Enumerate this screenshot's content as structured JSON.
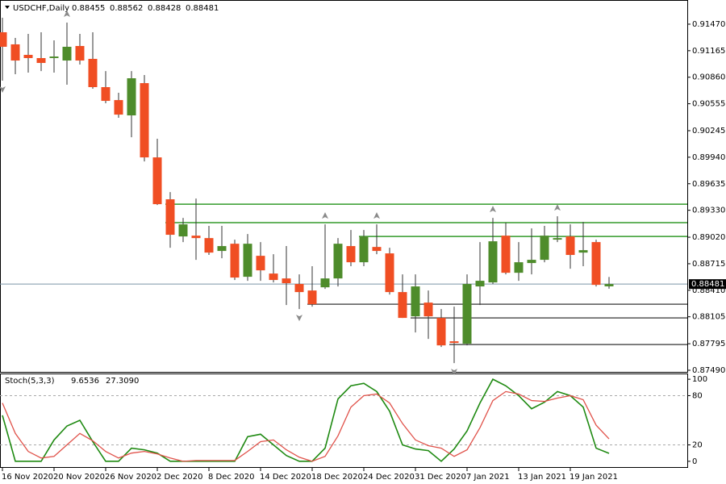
{
  "chart_data": {
    "type": "candlestick",
    "title": "USDCHF,Daily",
    "categories": [
      "16 Nov 2020",
      null,
      null,
      null,
      "20 Nov 2020",
      null,
      null,
      null,
      "26 Nov 2020",
      null,
      null,
      null,
      "2 Dec 2020",
      null,
      null,
      null,
      "8 Dec 2020",
      null,
      null,
      null,
      "14 Dec 2020",
      null,
      null,
      null,
      "18 Dec 2020",
      null,
      null,
      null,
      "24 Dec 2020",
      null,
      null,
      null,
      "31 Dec 2020",
      null,
      null,
      null,
      "7 Jan 2021",
      null,
      null,
      null,
      "13 Jan 2021",
      null,
      null,
      null,
      "19 Jan 2021",
      null,
      null,
      null
    ],
    "open": [
      0.91377,
      0.91238,
      0.91117,
      0.9108,
      0.9108,
      0.91052,
      0.91219,
      0.91071,
      0.90746,
      0.90597,
      0.90421,
      0.90792,
      0.89938,
      0.89456,
      0.89029,
      0.89038,
      0.8901,
      0.88862,
      0.88945,
      0.88565,
      0.88806,
      0.88602,
      0.88546,
      0.88482,
      0.88407,
      0.88444,
      0.88546,
      0.88918,
      0.88732,
      0.88908,
      0.88834,
      0.88389,
      0.8811,
      0.88268,
      0.88092,
      0.87823,
      0.87795,
      0.88454,
      0.885,
      0.89038,
      0.88611,
      0.88723,
      0.8876,
      0.88992,
      0.89029,
      0.88843,
      0.88964,
      0.88455
    ],
    "high": [
      0.91544,
      0.91312,
      0.91358,
      0.91377,
      0.91284,
      0.91488,
      0.91358,
      0.91377,
      0.90931,
      0.90681,
      0.90931,
      0.90885,
      0.90152,
      0.89539,
      0.89242,
      0.89465,
      0.8915,
      0.8915,
      0.88992,
      0.89057,
      0.88964,
      0.88825,
      0.88918,
      0.88593,
      0.88686,
      0.89168,
      0.8901,
      0.89103,
      0.89103,
      0.89168,
      0.88899,
      0.88593,
      0.88593,
      0.88407,
      0.88194,
      0.88222,
      0.88593,
      0.88964,
      0.89242,
      0.89187,
      0.88964,
      0.89122,
      0.8915,
      0.89261,
      0.89168,
      0.89196,
      0.88992,
      0.88562
    ],
    "low": [
      0.9082,
      0.90894,
      0.90913,
      0.90931,
      0.90913,
      0.90774,
      0.91006,
      0.90727,
      0.9056,
      0.90393,
      0.9017,
      0.89892,
      0.89391,
      0.88899,
      0.88964,
      0.8876,
      0.88816,
      0.88778,
      0.88528,
      0.88519,
      0.88519,
      0.885,
      0.8824,
      0.88194,
      0.88222,
      0.88426,
      0.88454,
      0.88686,
      0.88686,
      0.88825,
      0.88361,
      0.88092,
      0.87925,
      0.8785,
      0.87758,
      0.87572,
      0.87776,
      0.8824,
      0.88482,
      0.88593,
      0.88519,
      0.88593,
      0.88732,
      0.88964,
      0.88658,
      0.88686,
      0.88454,
      0.88428
    ],
    "close": [
      0.9121,
      0.91052,
      0.9108,
      0.91024,
      0.91098,
      0.9121,
      0.91052,
      0.90746,
      0.90588,
      0.9043,
      0.90848,
      0.89938,
      0.894,
      0.89048,
      0.89168,
      0.8901,
      0.88843,
      0.88918,
      0.88556,
      0.88945,
      0.88639,
      0.88528,
      0.88491,
      0.88389,
      0.88249,
      0.88546,
      0.88945,
      0.88732,
      0.89029,
      0.88862,
      0.88389,
      0.88092,
      0.88454,
      0.8811,
      0.87776,
      0.87804,
      0.88482,
      0.88519,
      0.88973,
      0.88611,
      0.88732,
      0.8876,
      0.89038,
      0.8901,
      0.88816,
      0.88871,
      0.88472,
      0.88481
    ],
    "up_color": "#4e8c2b",
    "down_color": "#f04e23",
    "ylim": [
      0.87462,
      0.91748
    ],
    "yticks": [
      {
        "value": 0.9147,
        "label": "0.91470"
      },
      0.91165,
      {
        "value": 0.9086,
        "label": "0.90860"
      },
      0.90555,
      0.90245,
      {
        "value": 0.8994,
        "label": "0.89940"
      },
      0.89635,
      {
        "value": 0.8933,
        "label": "0.89330"
      },
      {
        "value": 0.8902,
        "label": "0.89020"
      },
      0.88715,
      {
        "value": 0.8841,
        "label": "0.88410"
      },
      0.88105,
      0.87795,
      {
        "value": 0.8749,
        "label": "0.87490"
      }
    ],
    "last_price": 0.88481,
    "levels": [
      {
        "value": 0.894,
        "start": 13,
        "color": "#339a2a"
      },
      {
        "value": 0.89187,
        "start": 13,
        "color": "#339a2a"
      },
      {
        "value": 0.89029,
        "start": 28,
        "color": "#339a2a"
      },
      {
        "value": 0.88249,
        "start": 24,
        "color": "#555555"
      },
      {
        "value": 0.88092,
        "start": 32,
        "color": "#555555"
      },
      {
        "value": 0.87786,
        "start": 35,
        "color": "#555555"
      }
    ],
    "fractals_up": [
      5,
      25,
      29,
      38,
      43
    ],
    "fractals_down": [
      0,
      23,
      35
    ],
    "indicator": {
      "type": "line",
      "title": "Stoch(5,3,3)",
      "ylim": [
        -8,
        107
      ],
      "yticks": [
        100,
        80,
        20,
        0
      ],
      "levels": [
        80,
        20
      ],
      "series": [
        {
          "color": "#1f8a12",
          "values": [
            56,
            0,
            0,
            0,
            26,
            43,
            50,
            24,
            0,
            0,
            16,
            14,
            10,
            0,
            0,
            0,
            0,
            0,
            0,
            30,
            33,
            20,
            7,
            0,
            0,
            16,
            76,
            92,
            95,
            85,
            61,
            20,
            15,
            13,
            0,
            15,
            37,
            71,
            100,
            92,
            80,
            64,
            72,
            85,
            80,
            66,
            16,
            9.6536
          ]
        },
        {
          "color": "#e0524a",
          "values": [
            71,
            34,
            12,
            4,
            6,
            20,
            34,
            25,
            12,
            4,
            10,
            12,
            9,
            4,
            0,
            1,
            1,
            1,
            1,
            12,
            24,
            26,
            14,
            5,
            0,
            6,
            31,
            66,
            80,
            82,
            71,
            46,
            26,
            19,
            16,
            6,
            14,
            41,
            74,
            85,
            82,
            74,
            73,
            77,
            80,
            75,
            44,
            27.309
          ],
          "value_labels": [
            null,
            null,
            null,
            null,
            null,
            null,
            null,
            null,
            null,
            null,
            null,
            null,
            null,
            null,
            null,
            null,
            null,
            null,
            null,
            null,
            null,
            null,
            null,
            null,
            null,
            null,
            null,
            null,
            null,
            null,
            null,
            null,
            null,
            null,
            null,
            null,
            null,
            null,
            null,
            null,
            null,
            null,
            null,
            null,
            null,
            null,
            null,
            "27.3090"
          ]
        }
      ]
    }
  }
}
